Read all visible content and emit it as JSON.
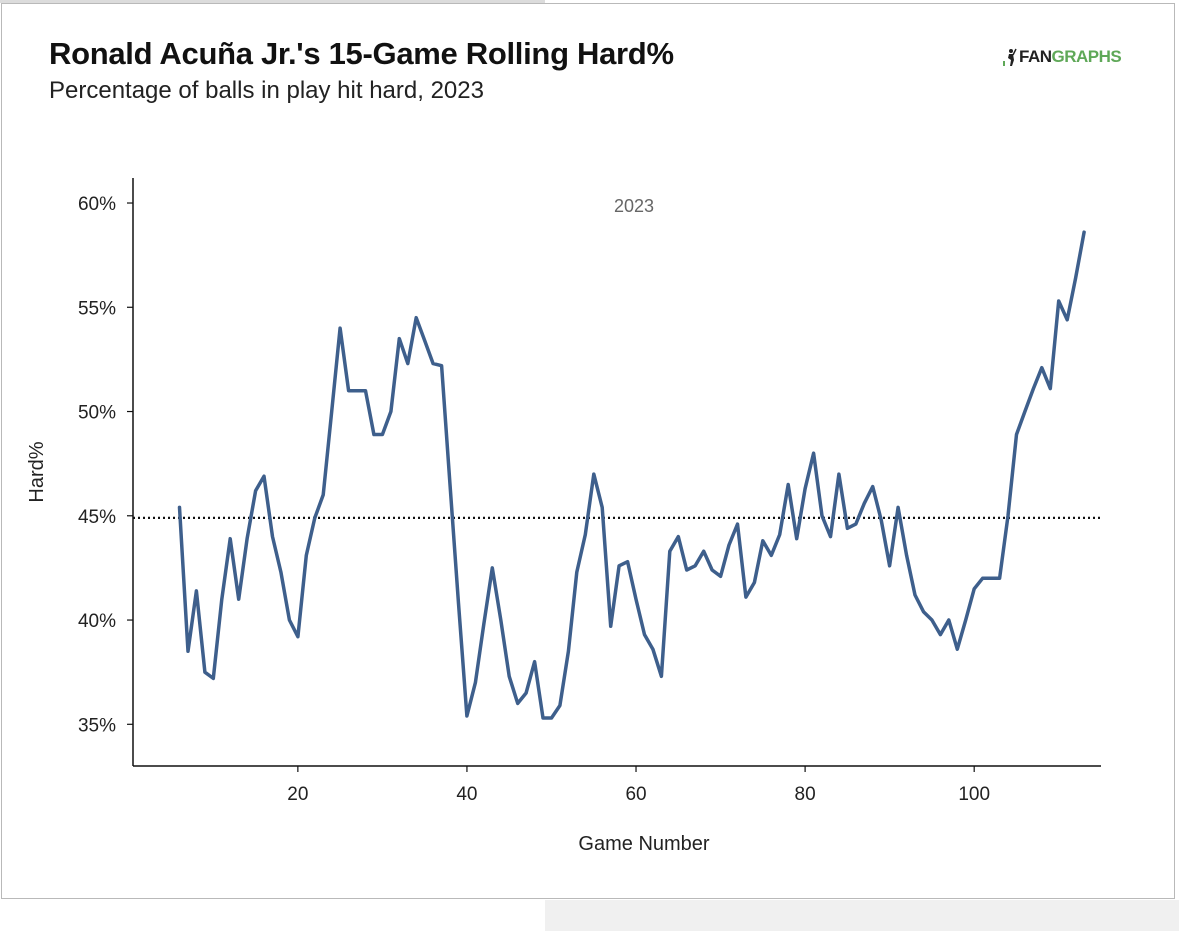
{
  "header": {
    "title": "Ronald Acuña Jr.'s 15-Game Rolling Hard%",
    "subtitle": "Percentage of balls in play hit hard, 2023",
    "logo_text_fan": "FAN",
    "logo_text_graphs": "GRAPHS"
  },
  "colors": {
    "line": "#3e5f8c",
    "reference_line": "#111111",
    "brand_green": "#5fa858"
  },
  "chart_data": {
    "type": "line",
    "title": "Ronald Acuña Jr.'s 15-Game Rolling Hard%",
    "subtitle": "Percentage of balls in play hit hard, 2023",
    "xlabel": "Game Number",
    "ylabel": "Hard%",
    "annotation": "2023",
    "xlim": [
      0.5,
      115
    ],
    "ylim": [
      33,
      61.2
    ],
    "x_ticks": [
      20,
      40,
      60,
      80,
      100
    ],
    "y_ticks": [
      35,
      40,
      45,
      50,
      55,
      60
    ],
    "y_tick_labels": [
      "35%",
      "40%",
      "45%",
      "50%",
      "55%",
      "60%"
    ],
    "x_tick_labels": [
      "20",
      "40",
      "60",
      "80",
      "100"
    ],
    "grid": false,
    "reference_line": 44.9,
    "series": [
      {
        "x": [
          6,
          7,
          8,
          9,
          10,
          11,
          12,
          13,
          14,
          15,
          16,
          17,
          18,
          19,
          20,
          21,
          22,
          23,
          24,
          25,
          26,
          27,
          28,
          29,
          30,
          31,
          32,
          33,
          34,
          35,
          36,
          37,
          38,
          39,
          40,
          41,
          42,
          43,
          44,
          45,
          46,
          47,
          48,
          49,
          50,
          51,
          52,
          53,
          54,
          55,
          56,
          57,
          58,
          59,
          60,
          61,
          62,
          63,
          64,
          65,
          66,
          67,
          68,
          69,
          70,
          71,
          72,
          73,
          74,
          75,
          76,
          77,
          78,
          79,
          80,
          81,
          82,
          83,
          84,
          85,
          86,
          87,
          88,
          89,
          90,
          91,
          92,
          93,
          94,
          95,
          96,
          97,
          98,
          99,
          100,
          101,
          102,
          103,
          104,
          105,
          106,
          107,
          108,
          109,
          110,
          111,
          112,
          113
        ],
        "y": [
          45.4,
          38.5,
          41.4,
          37.5,
          37.2,
          41.0,
          43.9,
          41.0,
          43.9,
          46.2,
          46.9,
          44.0,
          42.3,
          40.0,
          39.2,
          43.1,
          44.9,
          46.0,
          50.0,
          54.0,
          51.0,
          51.0,
          51.0,
          48.9,
          48.9,
          50.0,
          53.5,
          52.3,
          54.5,
          53.4,
          52.3,
          52.2,
          46.5,
          40.8,
          35.4,
          37.0,
          39.8,
          42.5,
          40.0,
          37.3,
          36.0,
          36.5,
          38.0,
          35.3,
          35.3,
          35.9,
          38.5,
          42.3,
          44.1,
          47.0,
          45.4,
          39.7,
          42.6,
          42.8,
          41.0,
          39.3,
          38.6,
          37.3,
          43.3,
          44.0,
          42.4,
          42.6,
          43.3,
          42.4,
          42.1,
          43.6,
          44.6,
          41.1,
          41.8,
          43.8,
          43.1,
          44.1,
          46.5,
          43.9,
          46.3,
          48.0,
          45.0,
          44.0,
          47.0,
          44.4,
          44.6,
          45.6,
          46.4,
          44.8,
          42.6,
          45.4,
          43.1,
          41.2,
          40.4,
          40.0,
          39.3,
          40.0,
          38.6,
          40.0,
          41.5,
          42.0,
          42.0,
          42.0,
          45.0,
          48.9,
          50.0,
          51.1,
          52.1,
          51.1,
          55.3,
          54.4,
          56.4,
          58.6
        ]
      }
    ]
  }
}
